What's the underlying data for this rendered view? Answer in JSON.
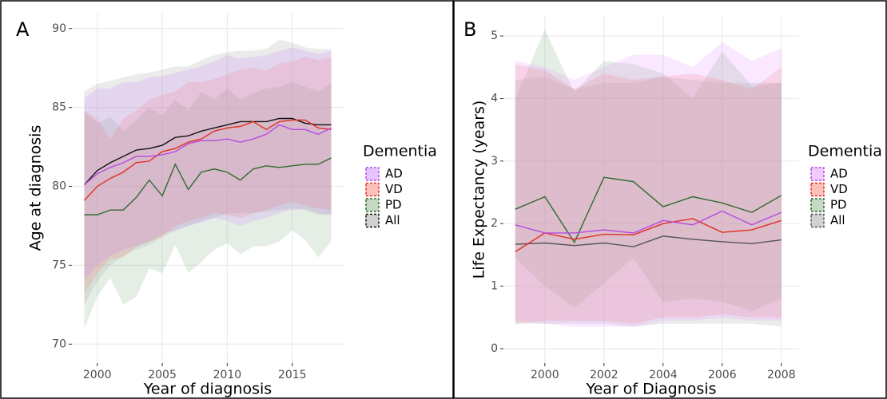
{
  "chart_data": [
    {
      "type": "line",
      "panel_label": "A",
      "x_label": "Year of diagnosis",
      "y_label": "Age at diagnosis",
      "legend_title": "Dementia",
      "grid": true,
      "x": [
        1999,
        2000,
        2001,
        2002,
        2003,
        2004,
        2005,
        2006,
        2007,
        2008,
        2009,
        2010,
        2011,
        2012,
        2013,
        2014,
        2015,
        2016,
        2017,
        2018
      ],
      "xlim": [
        1998.05,
        2018.95
      ],
      "ylim": [
        68.8,
        91
      ],
      "xticks": [
        2000,
        2005,
        2010,
        2015
      ],
      "yticks": [
        70,
        75,
        80,
        85,
        90
      ],
      "series": [
        {
          "name": "AD",
          "color": "#b44be0",
          "band_color": "#c77cff",
          "values": [
            80.1,
            80.8,
            81.2,
            81.5,
            81.9,
            81.9,
            82.0,
            82.2,
            82.7,
            82.9,
            82.9,
            83.0,
            82.8,
            83.0,
            83.3,
            83.9,
            83.6,
            83.6,
            83.3,
            83.7
          ],
          "lower": [
            74,
            75,
            75.6,
            76,
            76.2,
            76.5,
            77,
            77.2,
            77.5,
            77.7,
            78,
            77.8,
            77.5,
            77.8,
            78,
            78.3,
            78.5,
            78.6,
            78.3,
            78.2
          ],
          "upper": [
            85.6,
            86.2,
            86.2,
            86.6,
            86.6,
            86.9,
            87.0,
            87.2,
            87.4,
            87.6,
            87.9,
            88.3,
            88.1,
            88.2,
            88.3,
            88.6,
            88.8,
            88.6,
            88.4,
            88.6
          ]
        },
        {
          "name": "VD",
          "color": "#e0301e",
          "band_color": "#f8766d",
          "values": [
            79.1,
            80.0,
            80.5,
            80.9,
            81.5,
            81.6,
            82.2,
            82.4,
            82.8,
            83.0,
            83.5,
            83.7,
            83.8,
            84.1,
            83.6,
            84.1,
            84.2,
            84.2,
            83.7,
            83.6
          ],
          "lower": [
            73.2,
            74.5,
            75.4,
            75.5,
            76.2,
            76.5,
            76.8,
            77.5,
            77.8,
            78,
            78.3,
            78.2,
            78.0,
            78.3,
            78.5,
            78.8,
            79,
            78.8,
            78.6,
            78.5
          ],
          "upper": [
            84.8,
            84.3,
            83.0,
            84.3,
            84.8,
            85.5,
            85.8,
            86.0,
            86.6,
            86.6,
            86.8,
            87.1,
            87.4,
            87.5,
            87.3,
            87.8,
            87.9,
            88.2,
            88.0,
            88.2
          ]
        },
        {
          "name": "PD",
          "color": "#2e6b2e",
          "band_color": "#7faa7f",
          "values": [
            78.2,
            78.2,
            78.5,
            78.5,
            79.3,
            80.4,
            79.4,
            81.4,
            79.8,
            80.9,
            81.1,
            80.9,
            80.4,
            81.1,
            81.3,
            81.2,
            81.3,
            81.4,
            81.4,
            81.8
          ],
          "lower": [
            71.0,
            73.0,
            74.2,
            72.5,
            73.0,
            74.8,
            74.5,
            76.3,
            74.5,
            75.2,
            76.0,
            76.4,
            75.7,
            76.2,
            76.2,
            76.5,
            77.2,
            76.6,
            75.5,
            76.5
          ],
          "upper": [
            84.8,
            84.0,
            84.4,
            83.5,
            84.2,
            85.0,
            84.5,
            85.5,
            84.8,
            86.0,
            85.5,
            86.2,
            85.5,
            85.9,
            86.2,
            86.3,
            86.6,
            86.3,
            86.0,
            86.5
          ]
        },
        {
          "name": "All",
          "color": "#111111",
          "band_color": "#999999",
          "values": [
            80.1,
            81.0,
            81.5,
            81.9,
            82.3,
            82.4,
            82.6,
            83.1,
            83.2,
            83.5,
            83.7,
            83.9,
            84.1,
            84.1,
            84.1,
            84.3,
            84.3,
            84.0,
            83.9,
            83.9
          ],
          "lower": [
            72.5,
            74.0,
            75.0,
            75.6,
            76.0,
            76.3,
            76.8,
            77.2,
            77.5,
            77.8,
            78.0,
            78.3,
            78.3,
            78.3,
            78.4,
            78.5,
            78.6,
            78.5,
            78.2,
            78.2
          ],
          "upper": [
            86.0,
            86.5,
            86.7,
            86.9,
            87.1,
            87.2,
            87.4,
            87.6,
            87.6,
            88.0,
            88.3,
            88.5,
            88.6,
            88.6,
            88.7,
            89.3,
            89.1,
            88.8,
            88.7,
            88.7
          ]
        }
      ]
    },
    {
      "type": "line",
      "panel_label": "B",
      "x_label": "Year of Diagnosis",
      "y_label": "Life Expectancy (years)",
      "legend_title": "Dementia",
      "grid": true,
      "x": [
        1999,
        2000,
        2001,
        2002,
        2003,
        2004,
        2005,
        2006,
        2007,
        2008
      ],
      "xlim": [
        1998.6,
        2008.6
      ],
      "ylim": [
        -0.23,
        5.32
      ],
      "xticks": [
        2000,
        2002,
        2004,
        2006,
        2008
      ],
      "yticks": [
        0,
        1,
        2,
        3,
        4,
        5
      ],
      "series": [
        {
          "name": "AD",
          "color": "#b44be0",
          "band_color": "#e08cff",
          "values": [
            1.98,
            1.85,
            1.85,
            1.9,
            1.85,
            2.05,
            1.98,
            2.2,
            1.98,
            2.18
          ],
          "lower": [
            0.45,
            0.4,
            0.35,
            0.35,
            0.35,
            0.45,
            0.45,
            0.5,
            0.45,
            0.45
          ],
          "upper": [
            4.6,
            4.5,
            4.3,
            4.5,
            4.7,
            4.7,
            4.5,
            4.9,
            4.6,
            4.8
          ]
        },
        {
          "name": "VD",
          "color": "#e0301e",
          "band_color": "#f8766d",
          "values": [
            1.55,
            1.85,
            1.75,
            1.83,
            1.82,
            2.0,
            2.08,
            1.86,
            1.9,
            2.05
          ],
          "lower": [
            0.4,
            0.45,
            0.45,
            0.45,
            0.4,
            0.5,
            0.5,
            0.55,
            0.5,
            0.5
          ],
          "upper": [
            4.55,
            4.45,
            4.15,
            4.4,
            4.3,
            4.35,
            4.4,
            4.3,
            4.15,
            4.5
          ]
        },
        {
          "name": "PD",
          "color": "#2e6b2e",
          "band_color": "#7faa7f",
          "values": [
            2.23,
            2.43,
            1.7,
            2.74,
            2.67,
            2.27,
            2.43,
            2.33,
            2.18,
            2.45
          ],
          "lower": [
            1.45,
            1.0,
            0.65,
            1.05,
            1.45,
            0.75,
            0.8,
            0.75,
            0.6,
            0.8
          ],
          "upper": [
            4.0,
            5.1,
            4.1,
            4.6,
            4.55,
            4.4,
            4.0,
            4.75,
            4.2,
            4.25
          ]
        },
        {
          "name": "All",
          "color": "#555555",
          "band_color": "#999999",
          "values": [
            1.67,
            1.69,
            1.65,
            1.69,
            1.63,
            1.8,
            1.75,
            1.71,
            1.68,
            1.74
          ],
          "lower": [
            0.4,
            0.4,
            0.4,
            0.4,
            0.35,
            0.4,
            0.4,
            0.4,
            0.4,
            0.35
          ],
          "upper": [
            4.3,
            4.35,
            4.15,
            4.25,
            4.25,
            4.35,
            4.3,
            4.25,
            4.25,
            4.25
          ]
        }
      ]
    }
  ]
}
